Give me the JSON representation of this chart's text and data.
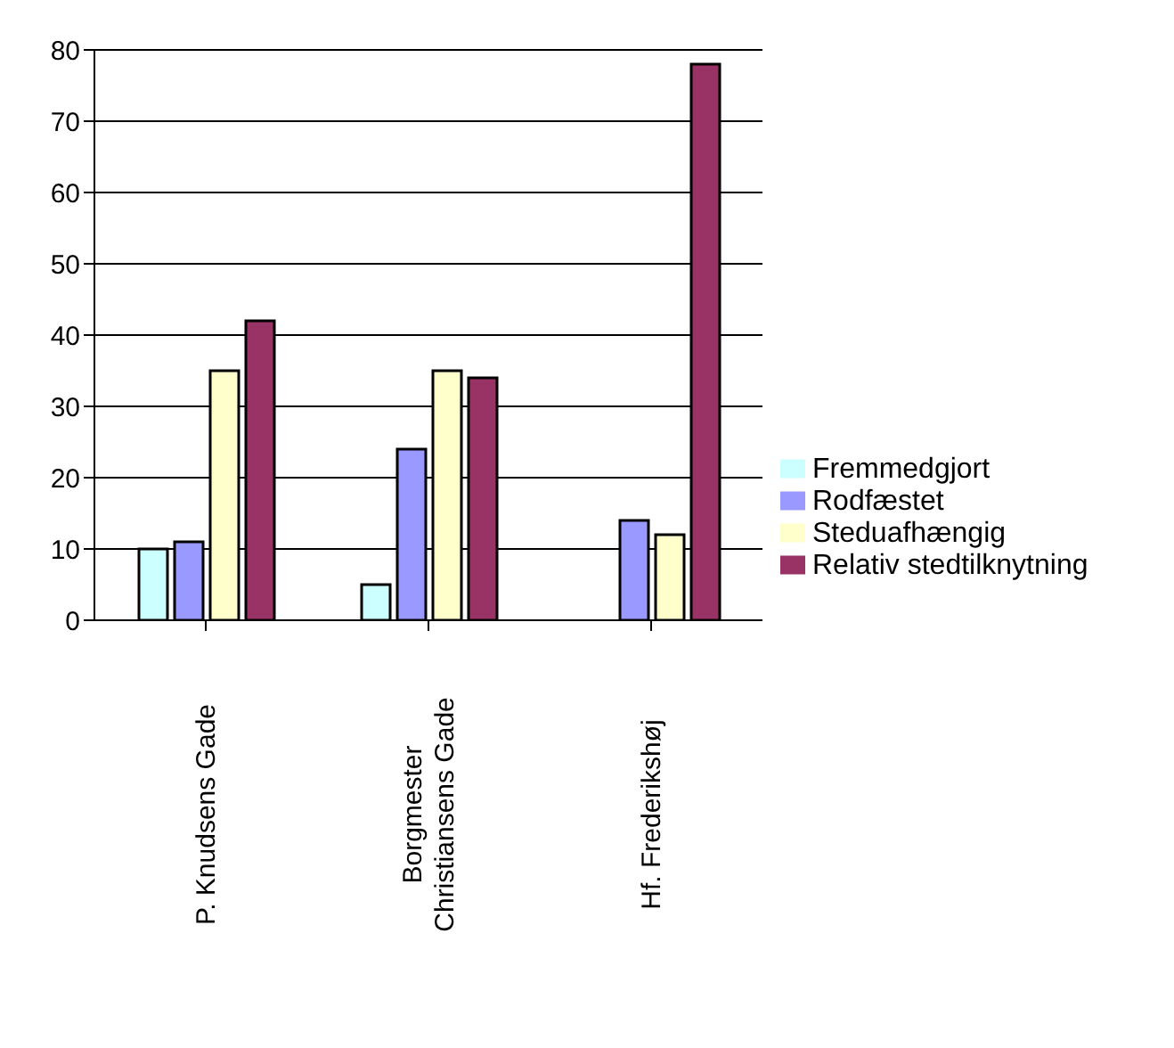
{
  "chart_data": {
    "type": "bar",
    "categories": [
      "P. Knudsens Gade",
      "Borgmester Christiansens Gade",
      "Hf. Frederikshøj"
    ],
    "series": [
      {
        "name": "Fremmedgjort",
        "color": "#ccffff",
        "values": [
          10,
          5,
          0
        ]
      },
      {
        "name": "Rodfæstet",
        "color": "#9999ff",
        "values": [
          11,
          24,
          14
        ]
      },
      {
        "name": "Steduafhængig",
        "color": "#ffffcc",
        "values": [
          35,
          35,
          12
        ]
      },
      {
        "name": "Relativ stedtilknytning",
        "color": "#993366",
        "values": [
          42,
          34,
          78
        ]
      }
    ],
    "ylim": [
      0,
      80
    ],
    "yticks": [
      0,
      10,
      20,
      30,
      40,
      50,
      60,
      70,
      80
    ],
    "grid": "y",
    "legend": "right"
  }
}
